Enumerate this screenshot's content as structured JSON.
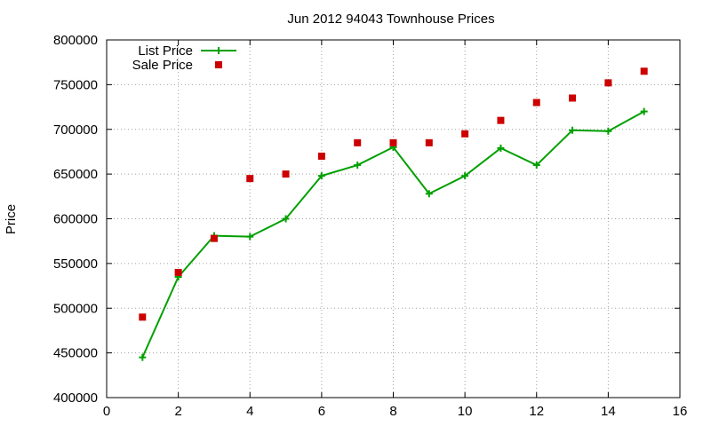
{
  "chart_data": {
    "type": "line",
    "title": "Jun 2012 94043 Townhouse Prices",
    "xlabel": "",
    "ylabel": "Price",
    "xlim": [
      0,
      16
    ],
    "ylim": [
      400000,
      800000
    ],
    "x_ticks": [
      0,
      2,
      4,
      6,
      8,
      10,
      12,
      14,
      16
    ],
    "y_ticks": [
      400000,
      450000,
      500000,
      550000,
      600000,
      650000,
      700000,
      750000,
      800000
    ],
    "grid": true,
    "legend_position": "top-left",
    "series": [
      {
        "name": "List Price",
        "style": "line-plus",
        "color": "#00a000",
        "x": [
          1,
          2,
          3,
          4,
          5,
          6,
          7,
          8,
          9,
          10,
          11,
          12,
          13,
          14,
          15
        ],
        "values": [
          445000,
          535000,
          581000,
          580000,
          600000,
          648000,
          660000,
          680000,
          628000,
          648000,
          679000,
          660000,
          699000,
          698000,
          720000
        ]
      },
      {
        "name": "Sale Price",
        "style": "square-markers",
        "color": "#cc0000",
        "x": [
          1,
          2,
          3,
          4,
          5,
          6,
          7,
          8,
          9,
          10,
          11,
          12,
          13,
          14,
          15
        ],
        "values": [
          490000,
          540000,
          578000,
          645000,
          650000,
          670000,
          685000,
          685000,
          685000,
          695000,
          710000,
          730000,
          735000,
          752000,
          765000
        ]
      }
    ]
  }
}
